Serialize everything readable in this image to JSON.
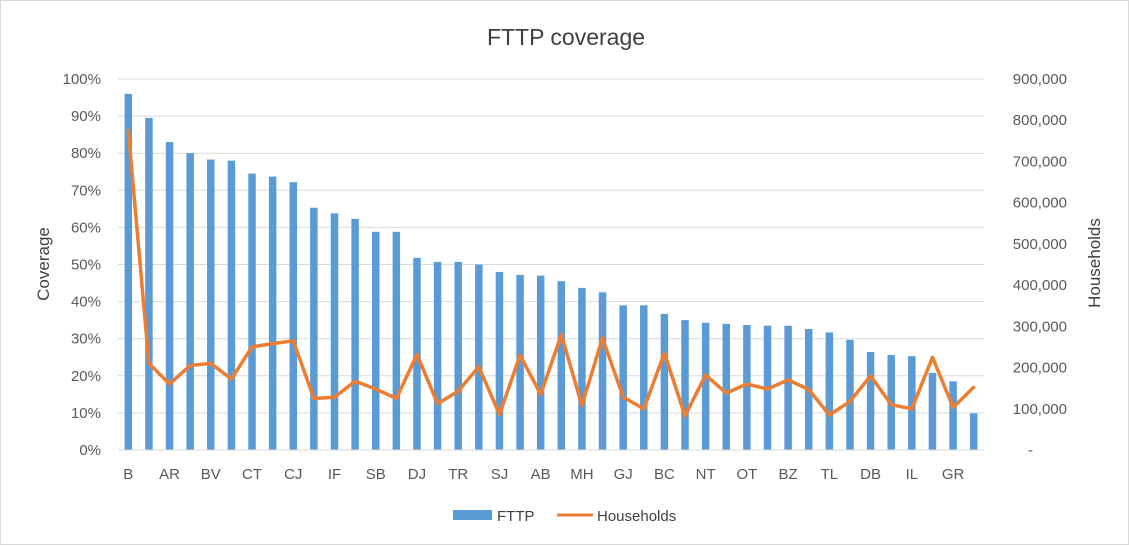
{
  "chart_data": {
    "type": "bar",
    "title": "FTTP coverage",
    "ylabel": "Coverage",
    "y2label": "Households",
    "ylim": [
      0,
      1
    ],
    "y2lim": [
      0,
      900000
    ],
    "yticks": [
      "0%",
      "10%",
      "20%",
      "30%",
      "40%",
      "50%",
      "60%",
      "70%",
      "80%",
      "90%",
      "100%"
    ],
    "y2ticks": [
      "-",
      "100,000",
      "200,000",
      "300,000",
      "400,000",
      "500,000",
      "600,000",
      "700,000",
      "800,000",
      "900,000"
    ],
    "grid": true,
    "legend_position": "bottom",
    "categories": [
      "B",
      "",
      "AR",
      "",
      "BV",
      "",
      "CT",
      "",
      "CJ",
      "",
      "IF",
      "",
      "SB",
      "",
      "DJ",
      "",
      "TR",
      "",
      "SJ",
      "",
      "AB",
      "",
      "MH",
      "",
      "GJ",
      "",
      "BC",
      "",
      "NT",
      "",
      "OT",
      "",
      "BZ",
      "",
      "TL",
      "",
      "DB",
      "",
      "IL",
      "",
      "GR",
      ""
    ],
    "series": [
      {
        "name": "FTTP",
        "type": "bar",
        "color": "#5b9bd5",
        "axis": "left",
        "values": [
          0.96,
          0.895,
          0.83,
          0.8,
          0.783,
          0.78,
          0.745,
          0.737,
          0.722,
          0.653,
          0.638,
          0.623,
          0.588,
          0.588,
          0.518,
          0.507,
          0.507,
          0.5,
          0.48,
          0.472,
          0.47,
          0.455,
          0.437,
          0.425,
          0.39,
          0.39,
          0.367,
          0.35,
          0.343,
          0.34,
          0.337,
          0.335,
          0.335,
          0.326,
          0.317,
          0.297,
          0.264,
          0.256,
          0.253,
          0.208,
          0.185,
          0.099
        ]
      },
      {
        "name": "Households",
        "type": "line",
        "color": "#ed7d31",
        "axis": "right",
        "values": [
          775000,
          210000,
          160000,
          205000,
          210000,
          172000,
          250000,
          258000,
          265000,
          125000,
          128000,
          167000,
          148000,
          125000,
          232000,
          112000,
          143000,
          202000,
          86000,
          230000,
          135000,
          280000,
          108000,
          272000,
          128000,
          100000,
          235000,
          83000,
          182000,
          138000,
          160000,
          148000,
          170000,
          147000,
          85000,
          118000,
          180000,
          110000,
          100000,
          225000,
          103000,
          152000
        ]
      }
    ]
  }
}
